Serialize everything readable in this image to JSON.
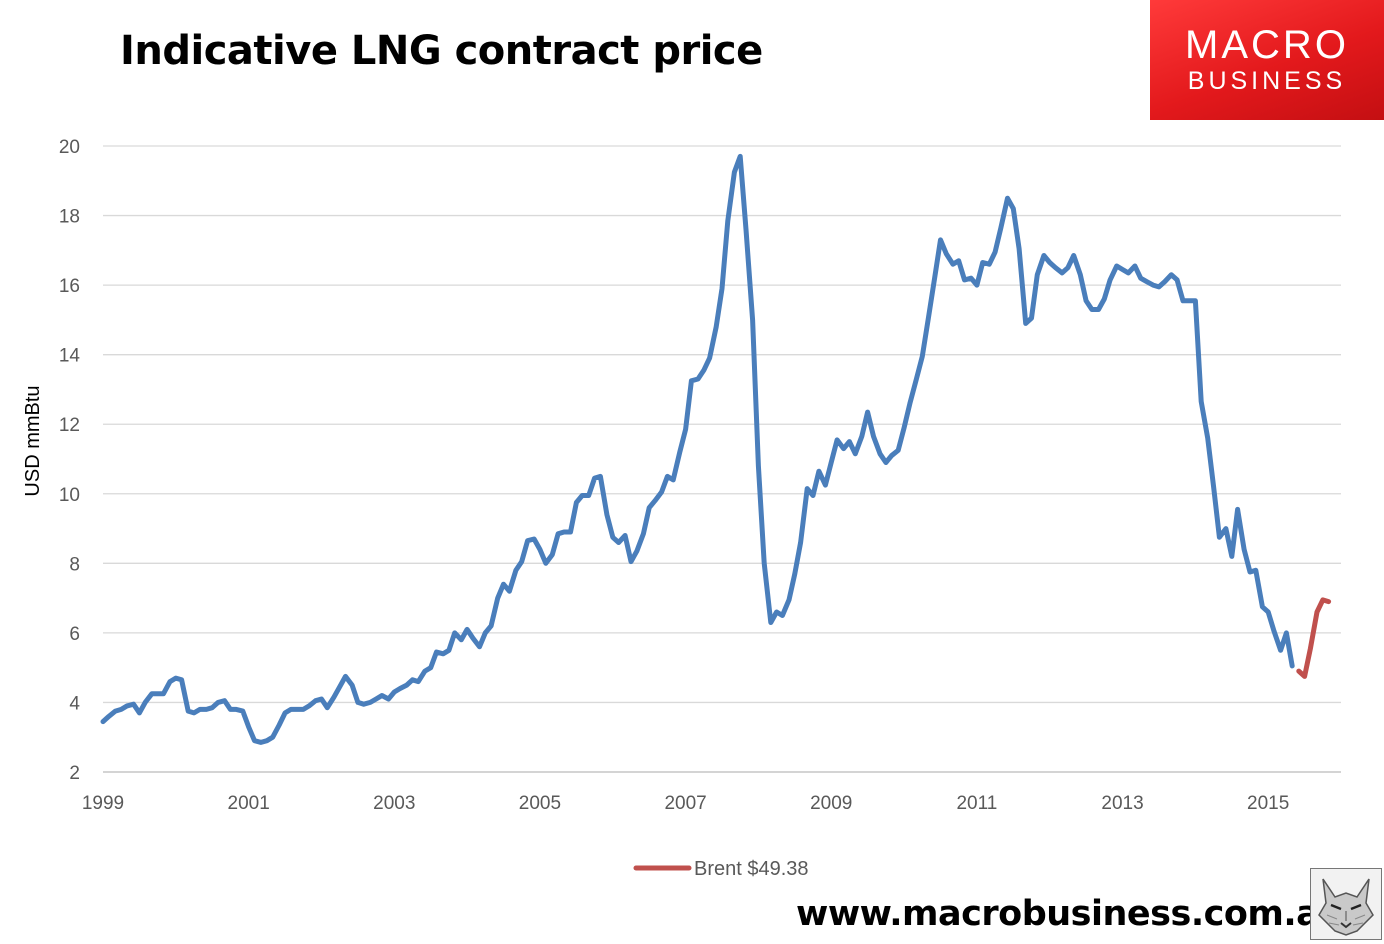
{
  "title": "Indicative LNG contract price",
  "brand": {
    "top": "MACRO",
    "bottom": "BUSINESS",
    "color": "#e3191c"
  },
  "footer": {
    "url": "www.macrobusiness.com.au"
  },
  "chart_data": {
    "type": "line",
    "ylabel": "USD mmBtu",
    "ylim": [
      2,
      20
    ],
    "yticks": [
      2,
      4,
      6,
      8,
      10,
      12,
      14,
      16,
      18,
      20
    ],
    "xlim": [
      1999.0,
      2016.0
    ],
    "xticks": [
      "1999",
      "2001",
      "2003",
      "2005",
      "2007",
      "2009",
      "2011",
      "2013",
      "2015"
    ],
    "grid": true,
    "legend_position": "bottom",
    "series": [
      {
        "color": "#4a7ebb",
        "x": [
          1999.0,
          1999.08,
          1999.17,
          1999.25,
          1999.33,
          1999.42,
          1999.5,
          1999.58,
          1999.67,
          1999.75,
          1999.83,
          1999.92,
          2000.0,
          2000.08,
          2000.17,
          2000.25,
          2000.33,
          2000.42,
          2000.5,
          2000.58,
          2000.67,
          2000.75,
          2000.83,
          2000.92,
          2001.0,
          2001.08,
          2001.17,
          2001.25,
          2001.33,
          2001.42,
          2001.5,
          2001.58,
          2001.67,
          2001.75,
          2001.83,
          2001.92,
          2002.0,
          2002.08,
          2002.17,
          2002.25,
          2002.33,
          2002.42,
          2002.5,
          2002.58,
          2002.67,
          2002.75,
          2002.83,
          2002.92,
          2003.0,
          2003.08,
          2003.17,
          2003.25,
          2003.33,
          2003.42,
          2003.5,
          2003.58,
          2003.67,
          2003.75,
          2003.83,
          2003.92,
          2004.0,
          2004.08,
          2004.17,
          2004.25,
          2004.33,
          2004.42,
          2004.5,
          2004.58,
          2004.67,
          2004.75,
          2004.83,
          2004.92,
          2005.0,
          2005.08,
          2005.17,
          2005.25,
          2005.33,
          2005.42,
          2005.5,
          2005.58,
          2005.67,
          2005.75,
          2005.83,
          2005.92,
          2006.0,
          2006.08,
          2006.17,
          2006.25,
          2006.33,
          2006.42,
          2006.5,
          2006.58,
          2006.67,
          2006.75,
          2006.83,
          2006.92,
          2007.0,
          2007.08,
          2007.17,
          2007.25,
          2007.33,
          2007.42,
          2007.5,
          2007.58,
          2007.67,
          2007.75,
          2007.83,
          2007.92,
          2008.0,
          2008.08,
          2008.17,
          2008.25,
          2008.33,
          2008.42,
          2008.5,
          2008.58,
          2008.67,
          2008.75,
          2008.83,
          2008.92,
          2009.0,
          2009.08,
          2009.17,
          2009.25,
          2009.33,
          2009.42,
          2009.5,
          2009.58,
          2009.67,
          2009.75,
          2009.83,
          2009.92,
          2010.0,
          2010.08,
          2010.17,
          2010.25,
          2010.33,
          2010.42,
          2010.5,
          2010.58,
          2010.67,
          2010.75,
          2010.83,
          2010.92,
          2011.0,
          2011.08,
          2011.17,
          2011.25,
          2011.33,
          2011.42,
          2011.5,
          2011.58,
          2011.67,
          2011.75,
          2011.83,
          2011.92,
          2012.0,
          2012.08,
          2012.17,
          2012.25,
          2012.33,
          2012.42,
          2012.5,
          2012.58,
          2012.67,
          2012.75,
          2012.83,
          2012.92,
          2013.0,
          2013.08,
          2013.17,
          2013.25,
          2013.33,
          2013.42,
          2013.5,
          2013.58,
          2013.67,
          2013.75,
          2013.83,
          2013.92,
          2014.0,
          2014.08,
          2014.17,
          2014.25,
          2014.33,
          2014.42,
          2014.5,
          2014.58,
          2014.67,
          2014.75,
          2014.83,
          2014.92,
          2015.0,
          2015.08,
          2015.17,
          2015.25,
          2015.33
        ],
        "values": [
          3.45,
          3.6,
          3.75,
          3.8,
          3.9,
          3.95,
          3.7,
          4.0,
          4.25,
          4.25,
          4.25,
          4.6,
          4.7,
          4.65,
          3.75,
          3.7,
          3.8,
          3.8,
          3.85,
          4.0,
          4.05,
          3.8,
          3.8,
          3.75,
          3.3,
          2.9,
          2.85,
          2.9,
          3.0,
          3.35,
          3.7,
          3.8,
          3.8,
          3.8,
          3.9,
          4.05,
          4.1,
          3.85,
          4.15,
          4.45,
          4.75,
          4.5,
          4.0,
          3.95,
          4.0,
          4.1,
          4.2,
          4.1,
          4.3,
          4.4,
          4.5,
          4.65,
          4.6,
          4.9,
          5.0,
          5.45,
          5.4,
          5.5,
          6.0,
          5.8,
          6.1,
          5.85,
          5.6,
          6.0,
          6.2,
          7.0,
          7.4,
          7.2,
          7.8,
          8.05,
          8.65,
          8.7,
          8.4,
          8.0,
          8.25,
          8.85,
          8.9,
          8.9,
          9.75,
          9.95,
          9.95,
          10.45,
          10.5,
          9.4,
          8.75,
          8.6,
          8.8,
          8.05,
          8.35,
          8.85,
          9.6,
          9.8,
          10.05,
          10.5,
          10.4,
          11.2,
          11.85,
          13.25,
          13.3,
          13.55,
          13.9,
          14.8,
          15.9,
          17.85,
          19.25,
          19.7,
          17.6,
          15.0,
          10.8,
          8.0,
          6.3,
          6.6,
          6.5,
          6.95,
          7.7,
          8.6,
          10.15,
          9.95,
          10.65,
          10.25,
          10.9,
          11.55,
          11.3,
          11.5,
          11.15,
          11.65,
          12.35,
          11.65,
          11.15,
          10.9,
          11.1,
          11.25,
          11.9,
          12.6,
          13.3,
          13.95,
          15.0,
          16.2,
          17.3,
          16.9,
          16.6,
          16.7,
          16.15,
          16.2,
          16.0,
          16.65,
          16.6,
          16.95,
          17.65,
          18.5,
          18.2,
          17.05,
          14.9,
          15.05,
          16.3,
          16.85,
          16.65,
          16.5,
          16.35,
          16.5,
          16.85,
          16.3,
          15.55,
          15.3,
          15.3,
          15.6,
          16.15,
          16.55,
          16.45,
          16.35,
          16.55,
          16.2,
          16.1,
          16.0,
          15.95,
          16.1,
          16.3,
          16.15,
          15.55,
          15.55,
          15.55,
          12.65,
          11.6,
          10.2,
          8.75,
          9.0,
          8.2,
          9.55,
          8.4,
          7.75,
          7.8,
          6.75,
          6.6,
          6.05,
          5.5,
          6.0,
          5.05
        ]
      },
      {
        "name": "Brent $49.38",
        "color": "#c0504d",
        "x": [
          2015.42,
          2015.5,
          2015.58,
          2015.67,
          2015.75,
          2015.83
        ],
        "values": [
          4.9,
          4.75,
          5.55,
          6.6,
          6.95,
          6.9
        ]
      }
    ]
  }
}
